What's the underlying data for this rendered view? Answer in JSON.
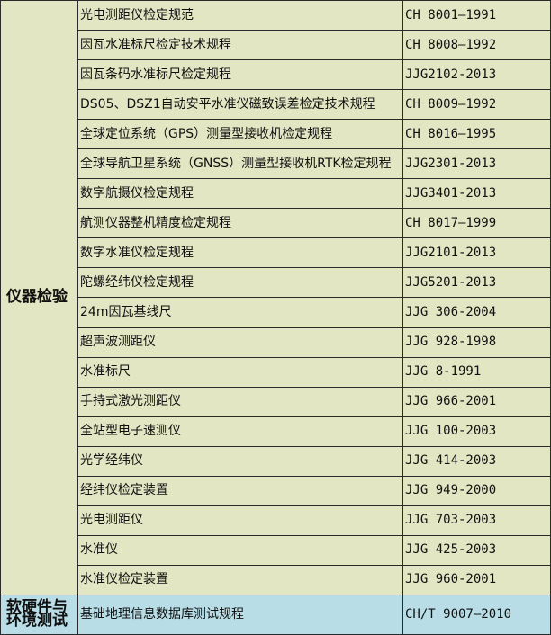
{
  "groups": [
    {
      "category": "仪器检验",
      "color": "#e3e6c3",
      "rows": [
        {
          "name": "光电测距仪检定规范",
          "code": "CH 8001—1991"
        },
        {
          "name": "因瓦水准标尺检定技术规程",
          "code": "CH 8008—1992"
        },
        {
          "name": "因瓦条码水准标尺检定规程",
          "code": "JJG2102-2013"
        },
        {
          "name": "DS05、DSZ1自动安平水准仪磁致误差检定技术规程",
          "code": "CH 8009—1992"
        },
        {
          "name": "全球定位系统（GPS）测量型接收机检定规程",
          "code": "CH 8016—1995"
        },
        {
          "name": "全球导航卫星系统（GNSS）测量型接收机RTK检定规程",
          "code": "JJG2301-2013"
        },
        {
          "name": "数字航摄仪检定规程",
          "code": "JJG3401-2013"
        },
        {
          "name": "航测仪器整机精度检定规程",
          "code": "CH 8017—1999"
        },
        {
          "name": "数字水准仪检定规程",
          "code": "JJG2101-2013"
        },
        {
          "name": "陀螺经纬仪检定规程",
          "code": "JJG5201-2013"
        },
        {
          "name": "24m因瓦基线尺",
          "code": "JJG 306-2004"
        },
        {
          "name": "超声波测距仪",
          "code": "JJG 928-1998"
        },
        {
          "name": "水准标尺",
          "code": "JJG 8-1991"
        },
        {
          "name": "手持式激光测距仪",
          "code": "JJG 966-2001"
        },
        {
          "name": "全站型电子速测仪",
          "code": "JJG 100-2003"
        },
        {
          "name": "光学经纬仪",
          "code": "JJG 414-2003"
        },
        {
          "name": "经纬仪检定装置",
          "code": "JJG 949-2000"
        },
        {
          "name": "光电测距仪",
          "code": "JJG 703-2003"
        },
        {
          "name": "水准仪",
          "code": "JJG 425-2003"
        },
        {
          "name": "水准仪检定装置",
          "code": "JJG 960-2001"
        }
      ]
    },
    {
      "category": "软硬件与环境测试",
      "color": "#b8dde6",
      "rows": [
        {
          "name": "基础地理信息数据库测试规程",
          "code": "CH/T 9007—2010"
        }
      ]
    }
  ]
}
